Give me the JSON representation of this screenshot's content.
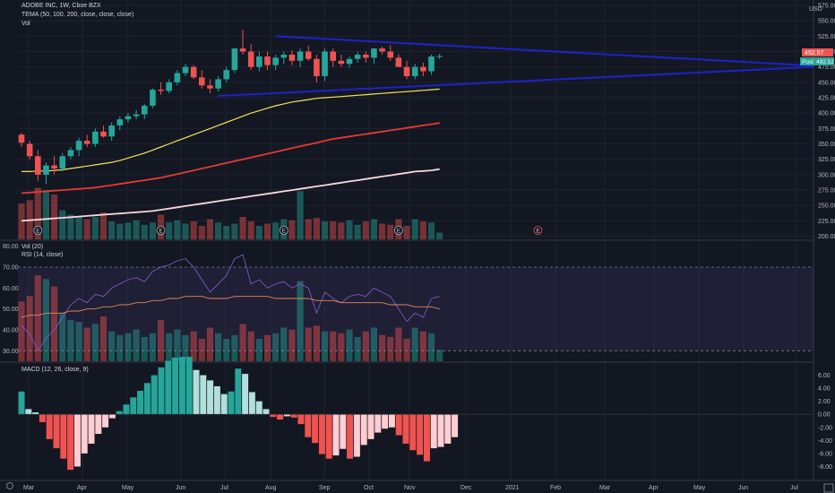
{
  "header": {
    "title": "ADOBE INC, 1W, Cboe BZX",
    "tema_label": "TEMA (50, 100, 200, close, close, close)",
    "vol_label": "Vol",
    "currency": "USD"
  },
  "panes": {
    "vol_label": "Vol (20)",
    "rsi_label": "RSI (14, close)",
    "macd_label": "MACD (12, 26, close, 9)"
  },
  "price_tags": {
    "last": "492.57",
    "post_label": "Post",
    "post": "492.52"
  },
  "earnings_marker": "E",
  "colors": {
    "up": "#26a69a",
    "down": "#ef5350",
    "tema50": "#f5e15c",
    "tema100": "#e53935",
    "tema200": "#f8d7da",
    "trend": "#1d23c9",
    "rsi": "#7e57c2",
    "rsi_ma": "#e28a5b",
    "macd_up": "#26a69a",
    "macd_up_fade": "#b2dfdb",
    "macd_down": "#ef5350",
    "macd_down_fade": "#ffcdd2",
    "band": "#7e57c2"
  },
  "chart_data": [
    {
      "type": "candlestick",
      "title": "ADOBE INC, 1W, Cboe BZX",
      "ylim": [
        195,
        575
      ],
      "yticks": [
        200,
        225,
        250,
        275,
        300,
        325,
        350,
        375,
        400,
        425,
        450,
        475,
        500,
        525,
        550,
        575
      ],
      "ytick_labels": [
        "200.00",
        "225.00",
        "250.00",
        "275.00",
        "300.00",
        "325.00",
        "350.00",
        "375.00",
        "400.00",
        "425.00",
        "450.00",
        "475.00",
        "500.00",
        "525.00",
        "550.00",
        "575.00"
      ],
      "xtick_labels": [
        "Mar",
        "Apr",
        "May",
        "Jun",
        "Jul",
        "Aug",
        "Sep",
        "Oct",
        "Nov",
        "Dec",
        "2021",
        "Feb",
        "Mar",
        "Apr",
        "May",
        "Jun",
        "Jul"
      ],
      "ohlc": [
        [
          365,
          368,
          345,
          352
        ],
        [
          350,
          355,
          325,
          330
        ],
        [
          330,
          340,
          290,
          300
        ],
        [
          300,
          320,
          285,
          315
        ],
        [
          315,
          330,
          300,
          310
        ],
        [
          310,
          335,
          305,
          330
        ],
        [
          330,
          345,
          325,
          340
        ],
        [
          340,
          360,
          330,
          355
        ],
        [
          355,
          365,
          345,
          350
        ],
        [
          350,
          375,
          345,
          370
        ],
        [
          370,
          380,
          360,
          362
        ],
        [
          362,
          385,
          355,
          380
        ],
        [
          380,
          395,
          372,
          390
        ],
        [
          390,
          400,
          385,
          395
        ],
        [
          395,
          405,
          390,
          398
        ],
        [
          398,
          415,
          390,
          412
        ],
        [
          412,
          440,
          408,
          438
        ],
        [
          438,
          450,
          430,
          436
        ],
        [
          436,
          455,
          432,
          450
        ],
        [
          450,
          470,
          445,
          465
        ],
        [
          465,
          480,
          460,
          475
        ],
        [
          475,
          478,
          455,
          458
        ],
        [
          458,
          470,
          440,
          445
        ],
        [
          445,
          455,
          432,
          440
        ],
        [
          440,
          460,
          435,
          455
        ],
        [
          455,
          475,
          450,
          470
        ],
        [
          470,
          505,
          465,
          505
        ],
        [
          505,
          535,
          495,
          500
        ],
        [
          500,
          512,
          470,
          475
        ],
        [
          475,
          500,
          468,
          492
        ],
        [
          492,
          500,
          470,
          478
        ],
        [
          478,
          495,
          470,
          490
        ],
        [
          490,
          500,
          480,
          495
        ],
        [
          495,
          502,
          478,
          485
        ],
        [
          485,
          505,
          475,
          500
        ],
        [
          500,
          510,
          485,
          488
        ],
        [
          488,
          495,
          450,
          460
        ],
        [
          460,
          505,
          452,
          500
        ],
        [
          500,
          505,
          475,
          485
        ],
        [
          485,
          495,
          475,
          480
        ],
        [
          480,
          492,
          474,
          488
        ],
        [
          488,
          500,
          482,
          495
        ],
        [
          495,
          500,
          482,
          490
        ],
        [
          490,
          505,
          480,
          505
        ],
        [
          505,
          508,
          495,
          500
        ],
        [
          500,
          510,
          485,
          490
        ],
        [
          490,
          496,
          475,
          475
        ],
        [
          475,
          485,
          455,
          460
        ],
        [
          460,
          480,
          455,
          475
        ],
        [
          475,
          482,
          460,
          468
        ],
        [
          468,
          495,
          462,
          492
        ],
        [
          492,
          496,
          488,
          492.57
        ]
      ],
      "series": [
        {
          "name": "TEMA 50",
          "values": [
            305,
            305,
            306,
            306,
            307,
            308,
            310,
            312,
            314,
            316,
            318,
            320,
            323,
            327,
            331,
            335,
            340,
            345,
            350,
            355,
            360,
            365,
            370,
            375,
            380,
            385,
            390,
            395,
            400,
            404,
            408,
            412,
            415,
            418,
            420,
            422,
            424,
            425,
            426,
            427,
            428,
            429,
            430,
            431,
            432,
            433,
            434,
            435,
            436,
            437,
            438,
            439
          ]
        },
        {
          "name": "TEMA 100",
          "values": [
            270,
            271,
            272,
            273,
            274,
            275,
            276,
            277,
            278,
            279,
            281,
            283,
            285,
            287,
            289,
            291,
            293,
            295,
            298,
            301,
            304,
            307,
            310,
            313,
            316,
            319,
            322,
            325,
            328,
            331,
            334,
            337,
            340,
            343,
            346,
            349,
            352,
            355,
            358,
            360,
            362,
            364,
            366,
            368,
            370,
            372,
            374,
            376,
            378,
            380,
            382,
            384
          ]
        },
        {
          "name": "TEMA 200",
          "values": [
            225,
            226,
            227,
            228,
            229,
            230,
            231,
            232,
            233,
            234,
            235,
            236,
            237,
            238,
            239,
            240,
            241,
            243,
            245,
            247,
            249,
            251,
            253,
            255,
            257,
            259,
            261,
            263,
            265,
            267,
            269,
            271,
            273,
            275,
            277,
            279,
            281,
            283,
            285,
            287,
            289,
            291,
            293,
            295,
            297,
            299,
            301,
            303,
            305,
            306,
            307,
            309
          ]
        }
      ],
      "trendlines": [
        {
          "from_bar": 31,
          "from": 525,
          "to_bar": 78,
          "to": 477
        },
        {
          "from_bar": 24,
          "from": 428,
          "to_bar": 78,
          "to": 475
        }
      ],
      "earnings_bars": [
        2,
        17,
        32,
        46,
        63
      ]
    },
    {
      "type": "bar",
      "title": "Vol (20)",
      "values": [
        3.2,
        3.5,
        4.6,
        4.4,
        4.0,
        2.6,
        2.2,
        2.1,
        1.8,
        2.0,
        2.4,
        1.6,
        1.4,
        1.5,
        1.7,
        1.3,
        1.5,
        2.2,
        1.5,
        1.7,
        1.4,
        1.6,
        1.2,
        1.8,
        1.5,
        1.2,
        1.4,
        2.0,
        1.6,
        1.2,
        1.4,
        1.5,
        1.8,
        1.7,
        4.3,
        1.8,
        1.9,
        1.6,
        1.6,
        1.5,
        1.7,
        1.3,
        1.6,
        1.8,
        1.4,
        1.3,
        1.8,
        1.2,
        1.8,
        1.6,
        1.5,
        0.6
      ],
      "ylim": [
        0,
        6
      ]
    },
    {
      "type": "line",
      "title": "RSI (14, close)",
      "ylim": [
        25,
        82
      ],
      "yticks": [
        30,
        40,
        50,
        60,
        70,
        80
      ],
      "ytick_labels": [
        "30.00",
        "40.00",
        "50.00",
        "60.00",
        "70.00",
        "80.00"
      ],
      "band": [
        30,
        70
      ],
      "series": [
        {
          "name": "RSI",
          "values": [
            42,
            38,
            30,
            36,
            40,
            46,
            52,
            55,
            53,
            57,
            56,
            60,
            62,
            64,
            65,
            63,
            68,
            70,
            71,
            73,
            74,
            70,
            64,
            58,
            62,
            66,
            74,
            76,
            62,
            64,
            60,
            62,
            63,
            60,
            62,
            60,
            48,
            58,
            55,
            53,
            56,
            57,
            56,
            60,
            58,
            56,
            50,
            44,
            48,
            46,
            55,
            56
          ]
        },
        {
          "name": "RSI MA",
          "values": [
            46,
            47,
            47,
            48,
            48,
            48,
            49,
            49,
            50,
            50,
            51,
            51,
            52,
            52,
            53,
            53,
            54,
            54,
            55,
            55,
            56,
            56,
            56,
            55,
            55,
            55,
            56,
            56,
            56,
            56,
            56,
            55,
            55,
            55,
            55,
            55,
            54,
            54,
            54,
            53,
            53,
            53,
            53,
            53,
            53,
            52,
            52,
            52,
            51,
            51,
            51,
            50
          ]
        }
      ]
    },
    {
      "type": "bar",
      "title": "MACD (12, 26, close, 9)",
      "ylim": [
        -10,
        8
      ],
      "yticks": [
        -8,
        -6,
        -4,
        -2,
        0,
        2,
        4,
        6
      ],
      "ytick_labels": [
        "-8.00",
        "-6.00",
        "-4.00",
        "-2.00",
        "0.00",
        "2.00",
        "4.00",
        "6.00"
      ],
      "values": [
        3.5,
        0.8,
        0.3,
        -1.2,
        -3.8,
        -5.2,
        -6.8,
        -8.5,
        -8.0,
        -6.0,
        -4.5,
        -3.0,
        -2.0,
        -0.6,
        0.5,
        1.5,
        2.6,
        3.6,
        4.8,
        6.0,
        7.2,
        8.2,
        8.7,
        8.8,
        8.8,
        6.8,
        6.0,
        5.2,
        4.3,
        3.1,
        3.5,
        7.0,
        6.2,
        3.4,
        2.0,
        0.8,
        -0.4,
        -0.8,
        -0.3,
        -0.5,
        -1.5,
        -3.5,
        -4.4,
        -6.1,
        -6.8,
        -6.3,
        -5.3,
        -6.8,
        -6.5,
        -4.7,
        -3.8,
        -2.8,
        -2.2,
        -2.0,
        -3.2,
        -4.5,
        -5.5,
        -6.2,
        -7.2,
        -5.2,
        -5.0,
        -4.5,
        -3.5
      ]
    }
  ]
}
